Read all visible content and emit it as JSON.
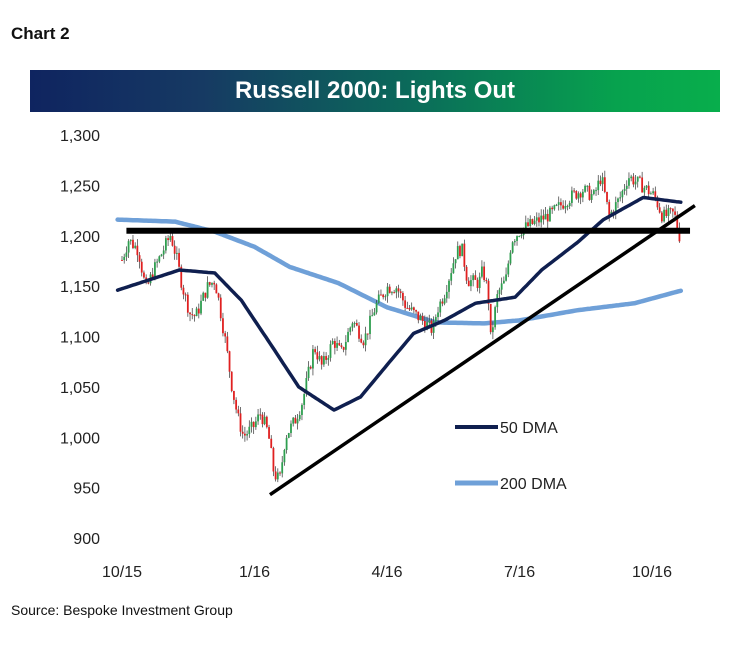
{
  "header": {
    "chart_label": "Chart 2"
  },
  "footer": {
    "source": "Source: Bespoke Investment Group"
  },
  "colors": {
    "title_start": "#0f2460",
    "title_end": "#08ae4c",
    "up": "#2e9e4f",
    "down": "#e02020",
    "dma50": "#0f1f4f",
    "dma200": "#6fa0d8",
    "lines": "#000000"
  },
  "chart_data": {
    "type": "line",
    "title": "Russell 2000: Lights Out",
    "xlabel": "",
    "ylabel": "",
    "x_unit": "months since Oct 2015",
    "ylim": [
      900,
      1300
    ],
    "xlim": [
      -0.1,
      12.9
    ],
    "yticks": [
      900,
      950,
      1000,
      1050,
      1100,
      1150,
      1200,
      1250,
      1300
    ],
    "ytick_labels": [
      "900",
      "950",
      "1,000",
      "1,050",
      "1,100",
      "1,150",
      "1,200",
      "1,250",
      "1,300"
    ],
    "xticks": [
      0,
      3,
      6,
      9,
      12
    ],
    "xtick_labels": [
      "10/15",
      "1/16",
      "4/16",
      "7/16",
      "10/16"
    ],
    "grid": false,
    "legend_position": "bottom-right",
    "series": [
      {
        "name": "Russell 2000",
        "style": "candlestick",
        "x": [
          0.0,
          0.15,
          0.37,
          0.54,
          0.72,
          1.1,
          1.23,
          1.37,
          1.54,
          1.67,
          1.93,
          2.1,
          2.19,
          2.36,
          2.49,
          2.62,
          2.75,
          2.97,
          3.14,
          3.31,
          3.44,
          3.57,
          3.7,
          3.92,
          4.09,
          4.35,
          4.53,
          4.79,
          4.96,
          5.22,
          5.48,
          5.74,
          6.0,
          6.22,
          6.43,
          6.61,
          6.87,
          7.04,
          7.13,
          7.3,
          7.56,
          7.69,
          7.82,
          8.08,
          8.17,
          8.29,
          8.34,
          8.51,
          8.69,
          8.82,
          9.03,
          9.47,
          9.73,
          10.07,
          10.42,
          10.68,
          10.85,
          11.03,
          11.29,
          11.46,
          11.8,
          12.06,
          12.24,
          12.5,
          12.67
        ],
        "values": [
          1176,
          1196,
          1186,
          1146,
          1166,
          1201,
          1179,
          1149,
          1123,
          1120,
          1149,
          1156,
          1136,
          1090,
          1050,
          1020,
          1001,
          1010,
          1024,
          1004,
          964,
          957,
          1001,
          1017,
          1036,
          1090,
          1070,
          1096,
          1083,
          1116,
          1096,
          1130,
          1149,
          1149,
          1130,
          1123,
          1113,
          1106,
          1126,
          1143,
          1183,
          1188,
          1156,
          1153,
          1166,
          1143,
          1096,
          1143,
          1156,
          1196,
          1206,
          1216,
          1222,
          1236,
          1246,
          1239,
          1259,
          1219,
          1239,
          1259,
          1249,
          1239,
          1219,
          1222,
          1191
        ]
      },
      {
        "name": "50 DMA",
        "x": [
          -0.1,
          1.3,
          2.1,
          2.7,
          3.4,
          4.0,
          4.8,
          5.4,
          6.1,
          6.6,
          7.3,
          8.0,
          8.9,
          9.5,
          10.3,
          10.9,
          11.8,
          12.7
        ],
        "values": [
          1146,
          1166,
          1163,
          1136,
          1090,
          1050,
          1027,
          1040,
          1077,
          1103,
          1116,
          1133,
          1139,
          1166,
          1193,
          1216,
          1238,
          1233
        ]
      },
      {
        "name": "200 DMA",
        "x": [
          -0.1,
          1.2,
          2.1,
          3.0,
          3.8,
          4.9,
          6.0,
          7.1,
          8.2,
          9.0,
          10.3,
          11.6,
          12.7
        ],
        "values": [
          1216,
          1214,
          1204,
          1189,
          1169,
          1153,
          1129,
          1114,
          1113,
          1116,
          1126,
          1133,
          1146
        ]
      }
    ],
    "annotations": [
      {
        "type": "horizontal-line",
        "name": "resistance",
        "y": 1205,
        "x_range": [
          0.1,
          12.86
        ]
      },
      {
        "type": "trendline",
        "name": "support",
        "from": [
          3.35,
          943
        ],
        "to": [
          12.97,
          1230
        ]
      }
    ],
    "legend": [
      "50 DMA",
      "200 DMA"
    ]
  }
}
